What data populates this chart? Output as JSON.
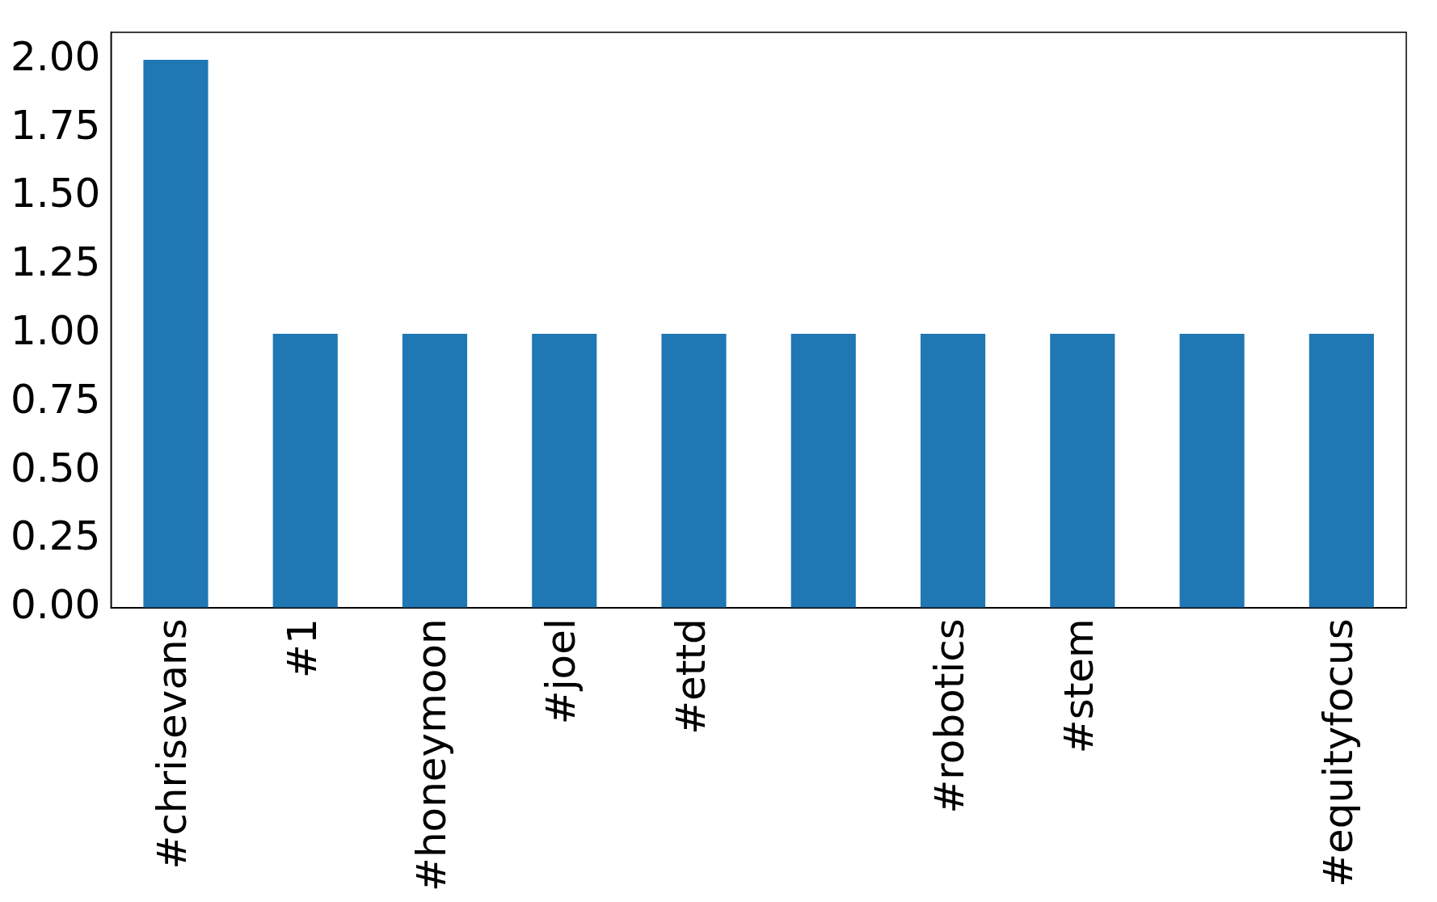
{
  "chart_data": {
    "type": "bar",
    "categories": [
      "#chrisevans",
      "#1",
      "#honeymoon",
      "#joel",
      "#ettd",
      null,
      "#robotics",
      "#stem",
      null,
      "#equityfocus"
    ],
    "values": [
      2,
      1,
      1,
      1,
      1,
      1,
      1,
      1,
      1,
      1
    ],
    "color": "#1f77b4",
    "ylim": [
      0,
      2.1
    ],
    "yticks": [
      {
        "value": 0,
        "label": "0.00"
      },
      {
        "value": 0.25,
        "label": "0.25"
      },
      {
        "value": 0.5,
        "label": "0.50"
      },
      {
        "value": 0.75,
        "label": "0.75"
      },
      {
        "value": 1,
        "label": "1.00"
      },
      {
        "value": 1.25,
        "label": "1.25"
      },
      {
        "value": 1.5,
        "label": "1.50"
      },
      {
        "value": 1.75,
        "label": "1.75"
      },
      {
        "value": 2,
        "label": "2.00"
      }
    ],
    "grid": false,
    "legend": false
  }
}
